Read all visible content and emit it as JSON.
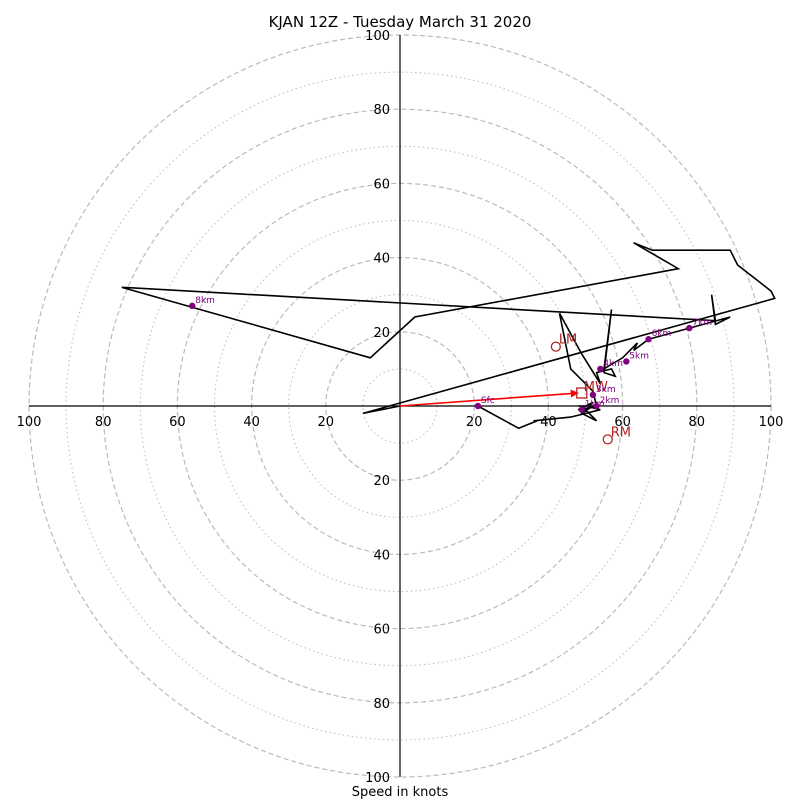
{
  "chart_data": {
    "type": "hodograph",
    "title": "KJAN 12Z - Tuesday March 31 2020",
    "xlabel": "Speed in knots",
    "units": "knots",
    "rings_dashed": [
      20,
      40,
      60,
      80,
      100
    ],
    "rings_dotted": [
      10,
      30,
      50,
      70,
      90
    ],
    "x_ticks_left": [
      "100",
      "80",
      "60",
      "40",
      "20"
    ],
    "x_ticks_right": [
      "20",
      "40",
      "60",
      "80",
      "100"
    ],
    "y_ticks_up": [
      "100",
      "80",
      "60",
      "40",
      "20"
    ],
    "y_ticks_down": [
      "20",
      "40",
      "60",
      "80",
      "100"
    ],
    "axis_range": [
      -100,
      100
    ],
    "grid": true,
    "trace": [
      [
        21,
        0
      ],
      [
        32,
        -6
      ],
      [
        37,
        -4
      ],
      [
        36,
        -4
      ],
      [
        46,
        -3
      ],
      [
        54,
        -1
      ],
      [
        50,
        0
      ],
      [
        48,
        0
      ],
      [
        52,
        0
      ],
      [
        49,
        -2
      ],
      [
        53,
        -4
      ],
      [
        50,
        -1
      ],
      [
        52,
        1
      ],
      [
        48,
        -1
      ],
      [
        53,
        0
      ],
      [
        52,
        4
      ],
      [
        46,
        10
      ],
      [
        43,
        25
      ],
      [
        49,
        14
      ],
      [
        54,
        6
      ],
      [
        53,
        9
      ],
      [
        57,
        10
      ],
      [
        58,
        8
      ],
      [
        55,
        9
      ],
      [
        57,
        26
      ],
      [
        55,
        10
      ],
      [
        60,
        13
      ],
      [
        64,
        17
      ],
      [
        63,
        15
      ],
      [
        67,
        18
      ],
      [
        78,
        21
      ],
      [
        89,
        24
      ],
      [
        85,
        22
      ],
      [
        84,
        30
      ],
      [
        85,
        23
      ],
      [
        -75,
        32
      ],
      [
        -8,
        13
      ],
      [
        4,
        24
      ],
      [
        75,
        37
      ],
      [
        63,
        44
      ],
      [
        68,
        42
      ],
      [
        74,
        42
      ],
      [
        89,
        42
      ],
      [
        91,
        38
      ],
      [
        100,
        31
      ],
      [
        101,
        29
      ],
      [
        -10,
        -2
      ],
      [
        0,
        0
      ]
    ],
    "height_markers": [
      {
        "label": "Sfc",
        "x": 21,
        "y": 0
      },
      {
        "label": "1km",
        "x": 49,
        "y": -1
      },
      {
        "label": "2km",
        "x": 53,
        "y": 0
      },
      {
        "label": "3km",
        "x": 52,
        "y": 3
      },
      {
        "label": "4km",
        "x": 54,
        "y": 10
      },
      {
        "label": "5km",
        "x": 61,
        "y": 12
      },
      {
        "label": "6km",
        "x": 67,
        "y": 18
      },
      {
        "label": "7km",
        "x": 78,
        "y": 21
      },
      {
        "label": "8km",
        "x": -56,
        "y": 27
      }
    ],
    "storm_motion": {
      "mean_wind": {
        "label": "MW",
        "x": 49,
        "y": 3.5
      },
      "left_mover": {
        "label": "LM",
        "x": 42,
        "y": 16
      },
      "right_mover": {
        "label": "RM",
        "x": 56,
        "y": -9
      }
    },
    "colors": {
      "trace": "#000000",
      "markers": "#800080",
      "storm": "#b22222",
      "arrow": "#ff0000",
      "grid": "#bbbbbb"
    }
  }
}
